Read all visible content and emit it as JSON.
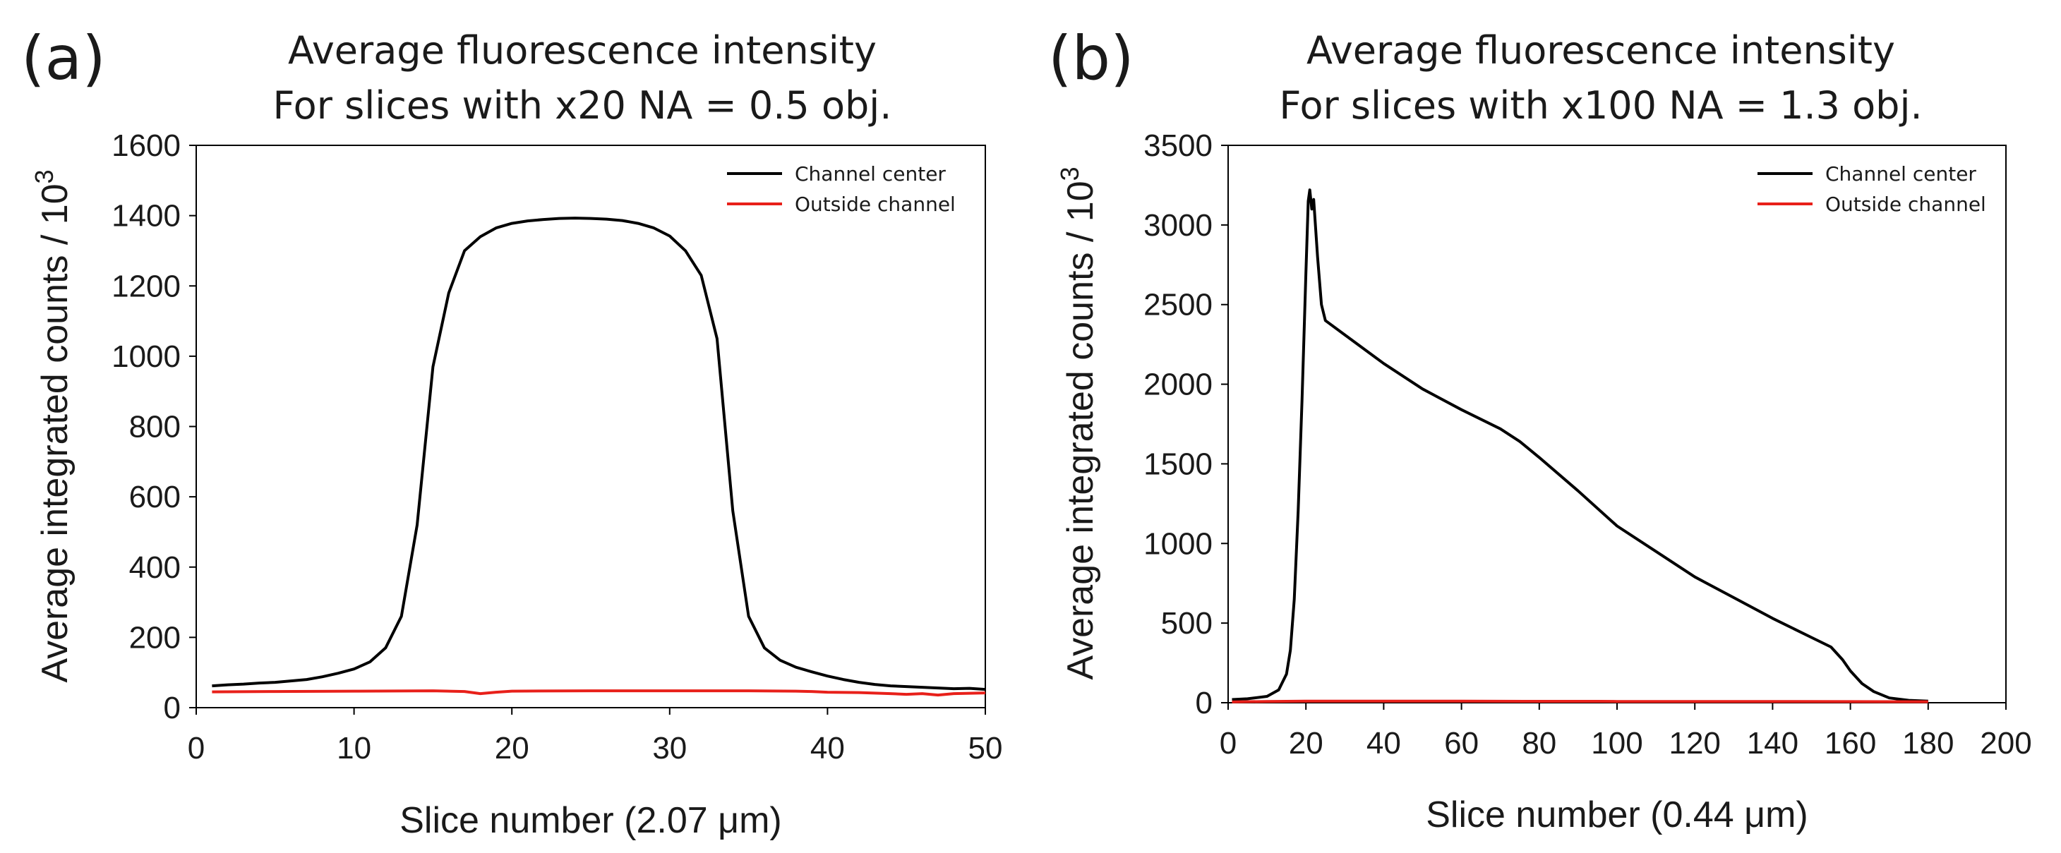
{
  "chart_data": [
    {
      "type": "line",
      "panel_label": "(a)",
      "title": [
        "Average fluorescence intensity",
        "For slices with x20 NA = 0.5 obj."
      ],
      "xlabel": "Slice number (2.07 μm)",
      "ylabel": "Average integrated counts / 10",
      "ylabel_superscript": "3",
      "xlim": [
        0,
        50
      ],
      "ylim": [
        0,
        1600
      ],
      "xticks": [
        "0",
        "10",
        "20",
        "30",
        "40",
        "50"
      ],
      "yticks": [
        "0",
        "200",
        "400",
        "600",
        "800",
        "1000",
        "1200",
        "1400",
        "1600"
      ],
      "grid": false,
      "legend_position": "top-right",
      "series": [
        {
          "name": "Channel center",
          "color": "#000000",
          "x": [
            1,
            2,
            3,
            4,
            5,
            6,
            7,
            8,
            9,
            10,
            11,
            12,
            13,
            14,
            15,
            16,
            17,
            18,
            19,
            20,
            21,
            22,
            23,
            24,
            25,
            26,
            27,
            28,
            29,
            30,
            31,
            32,
            33,
            34,
            35,
            36,
            37,
            38,
            39,
            40,
            41,
            42,
            43,
            44,
            45,
            46,
            47,
            48,
            49,
            50
          ],
          "y": [
            62,
            65,
            67,
            70,
            72,
            76,
            80,
            88,
            98,
            110,
            130,
            170,
            260,
            520,
            970,
            1180,
            1300,
            1340,
            1365,
            1378,
            1385,
            1389,
            1392,
            1393,
            1392,
            1390,
            1386,
            1378,
            1365,
            1342,
            1300,
            1230,
            1050,
            560,
            260,
            170,
            135,
            115,
            102,
            90,
            80,
            72,
            66,
            62,
            60,
            58,
            56,
            54,
            55,
            52
          ]
        },
        {
          "name": "Outside channel",
          "color": "#e8201a",
          "x": [
            1,
            5,
            10,
            15,
            17,
            18,
            19,
            20,
            25,
            30,
            35,
            38,
            39,
            40,
            42,
            44,
            45,
            46,
            47,
            48,
            50
          ],
          "y": [
            45,
            46,
            47,
            48,
            46,
            40,
            44,
            47,
            48,
            48,
            48,
            47,
            46,
            44,
            43,
            40,
            38,
            40,
            36,
            40,
            42
          ]
        }
      ]
    },
    {
      "type": "line",
      "panel_label": "(b)",
      "title": [
        "Average fluorescence intensity",
        "For slices with x100 NA = 1.3 obj."
      ],
      "xlabel": "Slice number (0.44 μm)",
      "ylabel": "Average integrated counts / 10",
      "ylabel_superscript": "3",
      "xlim": [
        0,
        200
      ],
      "ylim": [
        0,
        3500
      ],
      "xticks": [
        "0",
        "20",
        "40",
        "60",
        "80",
        "100",
        "120",
        "140",
        "160",
        "180",
        "200"
      ],
      "yticks": [
        "0",
        "500",
        "1000",
        "1500",
        "2000",
        "2500",
        "3000",
        "3500"
      ],
      "grid": false,
      "legend_position": "top-right",
      "series": [
        {
          "name": "Channel center",
          "color": "#000000",
          "x": [
            1,
            5,
            10,
            13,
            15,
            16,
            17,
            18,
            19,
            20,
            20.6,
            21,
            21.5,
            22,
            23,
            24,
            25,
            30,
            40,
            50,
            60,
            70,
            75,
            80,
            90,
            100,
            110,
            120,
            130,
            140,
            150,
            155,
            158,
            160,
            163,
            166,
            170,
            175,
            180
          ],
          "y": [
            20,
            25,
            40,
            80,
            180,
            330,
            650,
            1200,
            1900,
            2700,
            3150,
            3220,
            3100,
            3160,
            2800,
            2500,
            2400,
            2310,
            2130,
            1970,
            1840,
            1720,
            1640,
            1540,
            1330,
            1110,
            950,
            790,
            660,
            530,
            410,
            350,
            270,
            200,
            120,
            70,
            30,
            15,
            10
          ]
        },
        {
          "name": "Outside channel",
          "color": "#e8201a",
          "x": [
            1,
            10,
            20,
            40,
            60,
            80,
            95,
            100,
            120,
            140,
            160,
            180
          ],
          "y": [
            5,
            8,
            10,
            10,
            10,
            9,
            9,
            8,
            8,
            8,
            7,
            6
          ]
        }
      ]
    }
  ]
}
